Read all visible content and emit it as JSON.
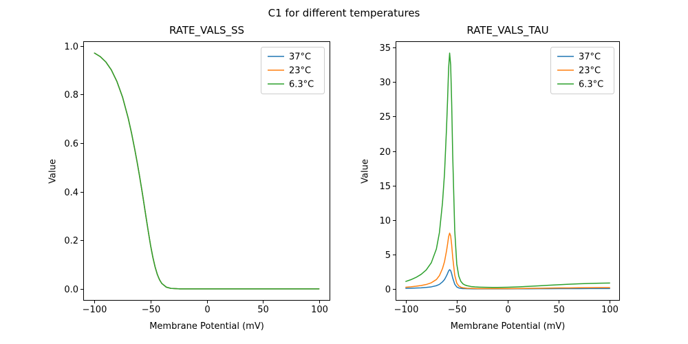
{
  "suptitle": "C1 for different temperatures",
  "colors": {
    "series_blue": "#1f77b4",
    "series_orange": "#ff7f0e",
    "series_green": "#2ca02c",
    "frame": "#000000",
    "legend_border": "#cccccc"
  },
  "chart_data": [
    {
      "type": "line",
      "title": "RATE_VALS_SS",
      "xlabel": "Membrane Potential (mV)",
      "ylabel": "Value",
      "xlim": [
        -110,
        110
      ],
      "ylim": [
        -0.0485,
        1.0185
      ],
      "grid": false,
      "xticks": {
        "values": [
          -100,
          -50,
          0,
          50,
          100
        ],
        "labels": [
          "−100",
          "−50",
          "0",
          "50",
          "100"
        ]
      },
      "yticks": {
        "values": [
          0.0,
          0.2,
          0.4,
          0.6,
          0.8,
          1.0
        ],
        "labels": [
          "0.0",
          "0.2",
          "0.4",
          "0.6",
          "0.8",
          "1.0"
        ]
      },
      "legend": {
        "position": "upper right",
        "entries": [
          {
            "label": "37°C",
            "color": "#1f77b4"
          },
          {
            "label": "23°C",
            "color": "#ff7f0e"
          },
          {
            "label": "6.3°C",
            "color": "#2ca02c"
          }
        ]
      },
      "x": [
        -100,
        -95,
        -90,
        -85,
        -80,
        -75,
        -70,
        -67,
        -64,
        -62,
        -60,
        -59,
        -58,
        -57,
        -56,
        -55,
        -54,
        -52,
        -50,
        -48,
        -46,
        -44,
        -42,
        -40,
        -36,
        -32,
        -28,
        -24,
        -20,
        -15,
        -10,
        -5,
        0,
        10,
        20,
        30,
        40,
        50,
        60,
        70,
        80,
        90,
        100
      ],
      "series": [
        {
          "name": "37°C",
          "color": "#1f77b4",
          "values": [
            0.97,
            0.956,
            0.934,
            0.901,
            0.853,
            0.789,
            0.703,
            0.641,
            0.571,
            0.521,
            0.468,
            0.44,
            0.412,
            0.383,
            0.353,
            0.323,
            0.293,
            0.234,
            0.178,
            0.13,
            0.09,
            0.059,
            0.037,
            0.022,
            0.007,
            0.002,
            0.001,
            0.0,
            0.0,
            0.0,
            0.0,
            0.0,
            0.0,
            0.0,
            0.0,
            0.0,
            0.0,
            0.0,
            0.0,
            0.0,
            0.0,
            0.0,
            0.0
          ]
        },
        {
          "name": "23°C",
          "color": "#ff7f0e",
          "values": [
            0.97,
            0.956,
            0.934,
            0.901,
            0.853,
            0.789,
            0.703,
            0.641,
            0.571,
            0.521,
            0.468,
            0.44,
            0.412,
            0.383,
            0.353,
            0.323,
            0.293,
            0.234,
            0.178,
            0.13,
            0.09,
            0.059,
            0.037,
            0.022,
            0.007,
            0.002,
            0.001,
            0.0,
            0.0,
            0.0,
            0.0,
            0.0,
            0.0,
            0.0,
            0.0,
            0.0,
            0.0,
            0.0,
            0.0,
            0.0,
            0.0,
            0.0,
            0.0
          ]
        },
        {
          "name": "6.3°C",
          "color": "#2ca02c",
          "values": [
            0.97,
            0.956,
            0.934,
            0.901,
            0.853,
            0.789,
            0.703,
            0.641,
            0.571,
            0.521,
            0.468,
            0.44,
            0.412,
            0.383,
            0.353,
            0.323,
            0.293,
            0.234,
            0.178,
            0.13,
            0.09,
            0.059,
            0.037,
            0.022,
            0.007,
            0.002,
            0.001,
            0.0,
            0.0,
            0.0,
            0.0,
            0.0,
            0.0,
            0.0,
            0.0,
            0.0,
            0.0,
            0.0,
            0.0,
            0.0,
            0.0,
            0.0,
            0.0
          ]
        }
      ]
    },
    {
      "type": "line",
      "title": "RATE_VALS_TAU",
      "xlabel": "Membrane Potential (mV)",
      "ylabel": "Value",
      "xlim": [
        -110,
        110
      ],
      "ylim": [
        -1.69,
        35.91
      ],
      "grid": false,
      "xticks": {
        "values": [
          -100,
          -50,
          0,
          50,
          100
        ],
        "labels": [
          "−100",
          "−50",
          "0",
          "50",
          "100"
        ]
      },
      "yticks": {
        "values": [
          0,
          5,
          10,
          15,
          20,
          25,
          30,
          35
        ],
        "labels": [
          "0",
          "5",
          "10",
          "15",
          "20",
          "25",
          "30",
          "35"
        ]
      },
      "legend": {
        "position": "upper right",
        "entries": [
          {
            "label": "37°C",
            "color": "#1f77b4"
          },
          {
            "label": "23°C",
            "color": "#ff7f0e"
          },
          {
            "label": "6.3°C",
            "color": "#2ca02c"
          }
        ]
      },
      "x": [
        -100,
        -95,
        -90,
        -85,
        -80,
        -75,
        -70,
        -67,
        -64,
        -62,
        -60,
        -59,
        -58,
        -57,
        -56,
        -55,
        -54,
        -52,
        -50,
        -48,
        -46,
        -44,
        -42,
        -40,
        -36,
        -32,
        -28,
        -24,
        -20,
        -15,
        -10,
        -5,
        0,
        10,
        20,
        30,
        40,
        50,
        60,
        70,
        80,
        90,
        100
      ],
      "series": [
        {
          "name": "37°C",
          "color": "#1f77b4",
          "values": [
            0.09,
            0.11,
            0.14,
            0.17,
            0.23,
            0.31,
            0.48,
            0.67,
            1.03,
            1.38,
            1.93,
            2.26,
            2.62,
            2.8,
            2.67,
            2.21,
            1.6,
            0.7,
            0.3,
            0.15,
            0.09,
            0.06,
            0.05,
            0.04,
            0.03,
            0.02,
            0.02,
            0.02,
            0.02,
            0.02,
            0.02,
            0.02,
            0.02,
            0.03,
            0.03,
            0.04,
            0.04,
            0.05,
            0.06,
            0.06,
            0.07,
            0.07,
            0.07
          ]
        },
        {
          "name": "23°C",
          "color": "#ff7f0e",
          "values": [
            0.26,
            0.32,
            0.4,
            0.5,
            0.65,
            0.9,
            1.37,
            1.94,
            2.96,
            3.98,
            5.57,
            6.52,
            7.58,
            8.1,
            7.7,
            6.4,
            4.62,
            2.01,
            0.85,
            0.44,
            0.26,
            0.18,
            0.14,
            0.11,
            0.09,
            0.07,
            0.06,
            0.06,
            0.06,
            0.05,
            0.05,
            0.06,
            0.06,
            0.07,
            0.09,
            0.11,
            0.13,
            0.15,
            0.16,
            0.18,
            0.19,
            0.2,
            0.21
          ]
        },
        {
          "name": "6.3°C",
          "color": "#2ca02c",
          "values": [
            1.1,
            1.35,
            1.68,
            2.12,
            2.75,
            3.8,
            5.8,
            8.2,
            12.5,
            16.8,
            23.5,
            27.5,
            32.0,
            34.2,
            32.5,
            27.0,
            19.5,
            8.5,
            3.6,
            1.85,
            1.1,
            0.75,
            0.58,
            0.48,
            0.36,
            0.3,
            0.27,
            0.25,
            0.24,
            0.23,
            0.23,
            0.24,
            0.26,
            0.31,
            0.38,
            0.46,
            0.54,
            0.62,
            0.69,
            0.75,
            0.8,
            0.84,
            0.87
          ]
        }
      ]
    }
  ]
}
